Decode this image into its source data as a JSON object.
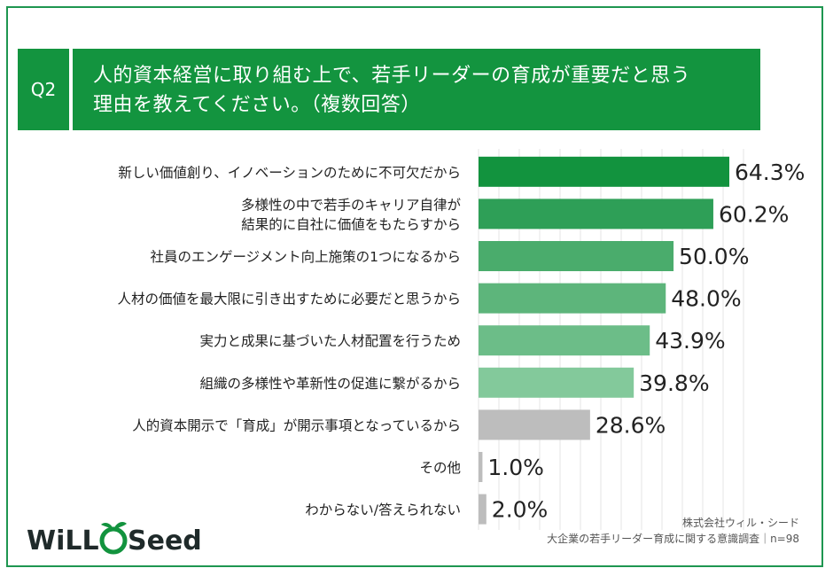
{
  "header": {
    "question_number": "Q2",
    "question_text": "人的資本経営に取り組む上で、若手リーダーの育成が重要だと思う\n理由を教えてください。（複数回答）"
  },
  "chart_data": {
    "type": "bar",
    "orientation": "horizontal",
    "categories": [
      "新しい価値創り、イノベーションのために不可欠だから",
      "多様性の中で若手のキャリア自律が\n結果的に自社に価値をもたらすから",
      "社員のエンゲージメント向上施策の1つになるから",
      "人材の価値を最大限に引き出すために必要だと思うから",
      "実力と成果に基づいた人材配置を行うため",
      "組織の多様性や革新性の促進に繋がるから",
      "人的資本開示で「育成」が開示事項となっているから",
      "その他",
      "わからない/答えられない"
    ],
    "values": [
      64.3,
      60.2,
      50.0,
      48.0,
      43.9,
      39.8,
      28.6,
      1.0,
      2.0
    ],
    "value_labels": [
      "64.3%",
      "60.2%",
      "50.0%",
      "48.0%",
      "43.9%",
      "39.8%",
      "28.6%",
      "1.0%",
      "2.0%"
    ],
    "colors": [
      "#12933e",
      "#2e9f57",
      "#4aac6c",
      "#5db57b",
      "#6cbd88",
      "#83c99b",
      "#bdbdbd",
      "#bdbdbd",
      "#bdbdbd"
    ],
    "xlim": [
      0,
      64.3
    ],
    "grid": true
  },
  "logo": {
    "text_left": "WiLL",
    "text_right": "Seed"
  },
  "source": {
    "company": "株式会社ウィル・シード",
    "survey": "大企業の若手リーダー育成に関する意識調査｜n=98"
  }
}
